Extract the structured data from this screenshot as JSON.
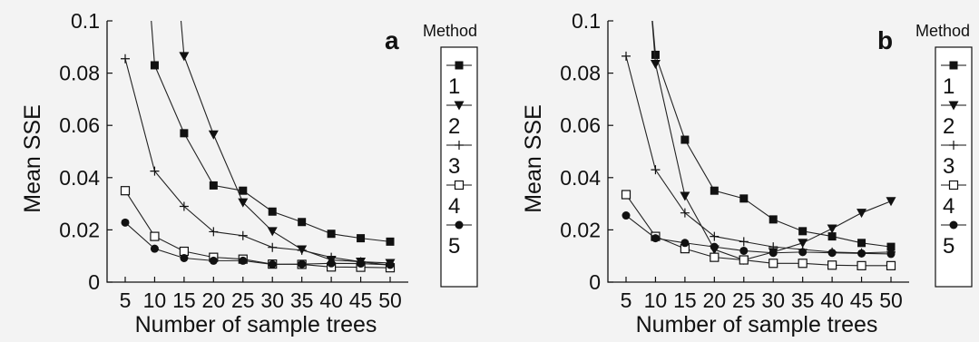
{
  "chart_data": [
    {
      "type": "line",
      "panel_label": "a",
      "xlabel": "Number of sample trees",
      "ylabel": "Mean SSE",
      "x": [
        5,
        10,
        15,
        20,
        25,
        30,
        35,
        40,
        45,
        50
      ],
      "xticks": [
        "5",
        "10",
        "15",
        "20",
        "25",
        "30",
        "35",
        "40",
        "45",
        "50"
      ],
      "ylim": [
        0,
        0.1
      ],
      "yticks": [
        "0",
        "0.02",
        "0.04",
        "0.06",
        "0.08",
        "0.1"
      ],
      "grid": false,
      "legend_title": "Method",
      "legend_position": "right",
      "series": [
        {
          "name": "1",
          "marker": "filled-square",
          "values": [
            null,
            0.083,
            0.057,
            0.037,
            0.035,
            0.027,
            0.023,
            0.0185,
            0.0168,
            0.0155
          ]
        },
        {
          "name": "2",
          "marker": "filled-triangle-down",
          "values": [
            null,
            null,
            0.0865,
            0.0565,
            0.0305,
            0.0195,
            0.0125,
            0.0085,
            0.0078,
            0.0073
          ]
        },
        {
          "name": "3",
          "marker": "plus",
          "values": [
            0.0855,
            0.0425,
            0.029,
            0.0193,
            0.0178,
            0.0133,
            0.0122,
            0.0095,
            0.0078,
            0.0065
          ]
        },
        {
          "name": "4",
          "marker": "open-square",
          "values": [
            0.035,
            0.0175,
            0.0118,
            0.0095,
            0.0088,
            0.0069,
            0.0068,
            0.0058,
            0.0057,
            0.0055
          ]
        },
        {
          "name": "5",
          "marker": "filled-circle",
          "values": [
            0.0228,
            0.0128,
            0.0092,
            0.0082,
            0.0082,
            0.0068,
            0.0069,
            0.0072,
            0.0071,
            0.0066
          ]
        }
      ]
    },
    {
      "type": "line",
      "panel_label": "b",
      "xlabel": "Number of sample trees",
      "ylabel": "Mean SSE",
      "x": [
        5,
        10,
        15,
        20,
        25,
        30,
        35,
        40,
        45,
        50
      ],
      "xticks": [
        "5",
        "10",
        "15",
        "20",
        "25",
        "30",
        "35",
        "40",
        "45",
        "50"
      ],
      "ylim": [
        0,
        0.1
      ],
      "yticks": [
        "0",
        "0.02",
        "0.04",
        "0.06",
        "0.08",
        "0.1"
      ],
      "grid": false,
      "legend_title": "Method",
      "legend_position": "right",
      "series": [
        {
          "name": "1",
          "marker": "filled-square",
          "values": [
            null,
            0.087,
            0.0545,
            0.035,
            0.032,
            0.024,
            0.0195,
            0.0175,
            0.015,
            0.0135
          ]
        },
        {
          "name": "2",
          "marker": "filled-triangle-down",
          "values": [
            null,
            0.0835,
            0.033,
            0.0125,
            0.0085,
            0.0115,
            0.015,
            0.0205,
            0.0265,
            0.031
          ]
        },
        {
          "name": "3",
          "marker": "plus",
          "values": [
            0.0865,
            0.043,
            0.0265,
            0.0175,
            0.0155,
            0.0135,
            0.0125,
            0.0115,
            0.0112,
            0.0115
          ]
        },
        {
          "name": "4",
          "marker": "open-square",
          "values": [
            0.0335,
            0.0175,
            0.0128,
            0.0095,
            0.0085,
            0.0072,
            0.0072,
            0.0065,
            0.0063,
            0.0063
          ]
        },
        {
          "name": "5",
          "marker": "filled-circle",
          "values": [
            0.0255,
            0.0168,
            0.015,
            0.0135,
            0.012,
            0.0112,
            0.0115,
            0.0112,
            0.011,
            0.0108
          ]
        }
      ]
    }
  ]
}
